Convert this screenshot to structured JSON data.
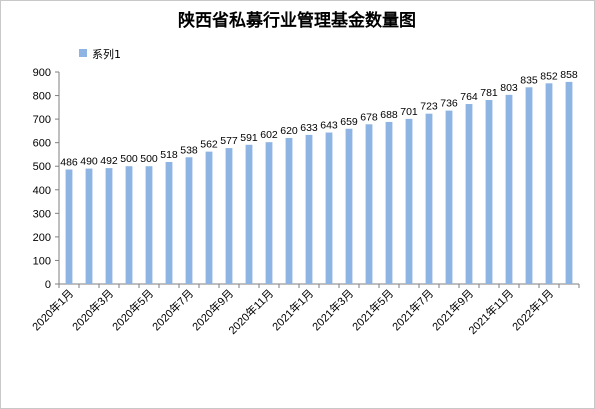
{
  "chart_data": {
    "type": "bar",
    "title": "陕西省私募行业管理基金数量图",
    "categories": [
      "2020年1月",
      "2020年2月",
      "2020年3月",
      "2020年4月",
      "2020年5月",
      "2020年6月",
      "2020年7月",
      "2020年8月",
      "2020年9月",
      "2020年10月",
      "2020年11月",
      "2020年12月",
      "2021年1月",
      "2021年2月",
      "2021年3月",
      "2021年4月",
      "2021年5月",
      "2021年6月",
      "2021年7月",
      "2021年8月",
      "2021年9月",
      "2021年10月",
      "2021年11月",
      "2021年12月",
      "2022年1月",
      "2022年2月"
    ],
    "tick_labels": [
      "2020年1月",
      "2020年3月",
      "2020年5月",
      "2020年7月",
      "2020年9月",
      "2020年11月",
      "2021年1月",
      "2021年3月",
      "2021年5月",
      "2021年7月",
      "2021年9月",
      "2021年11月",
      "2022年1月"
    ],
    "series": [
      {
        "name": "系列1",
        "values": [
          486,
          490,
          492,
          500,
          500,
          518,
          538,
          562,
          577,
          591,
          602,
          620,
          633,
          643,
          659,
          678,
          688,
          701,
          723,
          736,
          764,
          781,
          803,
          835,
          852,
          858
        ]
      }
    ],
    "ylim": [
      0,
      900
    ],
    "yticks": [
      "0",
      "100",
      "200",
      "300",
      "400",
      "500",
      "600",
      "700",
      "800",
      "900"
    ],
    "xlabel": "",
    "ylabel": "",
    "legend": "top-left",
    "grid": false,
    "bar_color": "#8DB4E2"
  }
}
